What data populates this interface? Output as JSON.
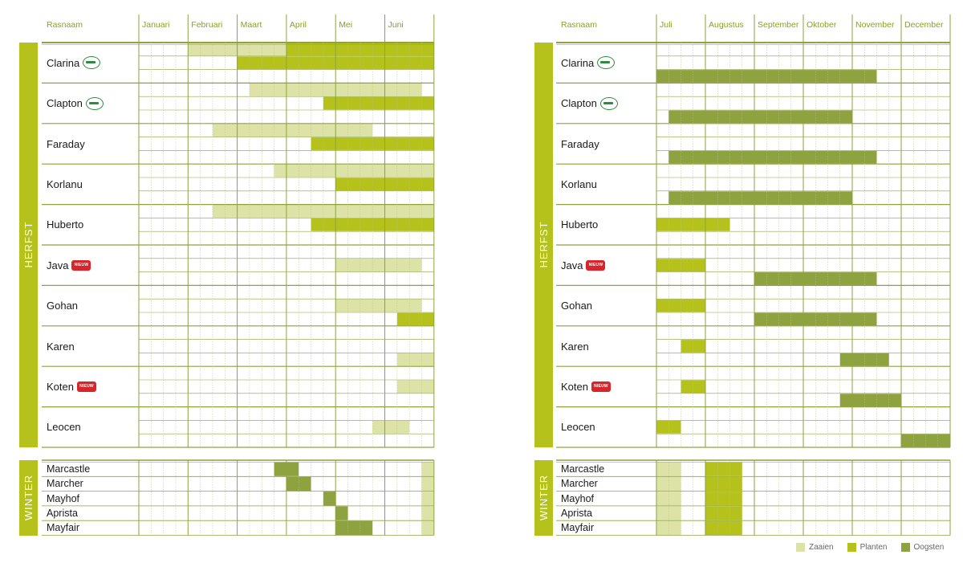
{
  "colors": {
    "zaaien": "#dde3a6",
    "planten": "#b5c21b",
    "oogsten": "#8ea23f",
    "band": "#b5c21b",
    "line": "#8ea23f",
    "accent": "#8aa31a"
  },
  "labels": {
    "rasnaam": "Rasnaam",
    "herfst": "HERFST",
    "winter": "WINTER",
    "new_badge": "NIEUW"
  },
  "legend": [
    {
      "key": "zaaien",
      "label": "Zaaien"
    },
    {
      "key": "planten",
      "label": "Planten"
    },
    {
      "key": "oogsten",
      "label": "Oogsten"
    }
  ],
  "chart_data": [
    {
      "type": "table",
      "months": [
        "Januari",
        "Februari",
        "Maart",
        "April",
        "Mei",
        "Juni"
      ],
      "unit": "quarter-months (0 = start of Januari)",
      "herfst": [
        {
          "name": "Clarina",
          "icon": "badge-icon",
          "r1": [
            [
              "zaaien",
              4,
              12
            ],
            [
              "planten",
              12,
              24
            ]
          ],
          "r2": [
            [
              "planten",
              8,
              24
            ]
          ],
          "r3": []
        },
        {
          "name": "Clapton",
          "icon": "badge-icon",
          "r1": [
            [
              "zaaien",
              9,
              23
            ]
          ],
          "r2": [
            [
              "planten",
              15,
              24
            ]
          ],
          "r3": []
        },
        {
          "name": "Faraday",
          "icon": "",
          "r1": [
            [
              "zaaien",
              6,
              19
            ]
          ],
          "r2": [
            [
              "planten",
              14,
              24
            ]
          ],
          "r3": []
        },
        {
          "name": "Korlanu",
          "icon": "",
          "r1": [
            [
              "zaaien",
              11,
              24
            ]
          ],
          "r2": [
            [
              "planten",
              16,
              24
            ]
          ],
          "r3": []
        },
        {
          "name": "Huberto",
          "icon": "",
          "r1": [
            [
              "zaaien",
              6,
              24
            ]
          ],
          "r2": [
            [
              "planten",
              14,
              24
            ]
          ],
          "r3": []
        },
        {
          "name": "Java",
          "icon": "new-icon",
          "r1": [],
          "r2": [
            [
              "zaaien",
              16,
              23
            ]
          ],
          "r3": []
        },
        {
          "name": "Gohan",
          "icon": "",
          "r1": [],
          "r2": [
            [
              "zaaien",
              16,
              23
            ]
          ],
          "r3": [
            [
              "planten",
              21,
              24
            ]
          ]
        },
        {
          "name": "Karen",
          "icon": "",
          "r1": [],
          "r2": [],
          "r3": [
            [
              "zaaien",
              21,
              24
            ]
          ]
        },
        {
          "name": "Koten",
          "icon": "new-icon",
          "r1": [],
          "r2": [
            [
              "zaaien",
              21,
              24
            ]
          ],
          "r3": []
        },
        {
          "name": "Leocen",
          "icon": "",
          "r1": [],
          "r2": [
            [
              "zaaien",
              19,
              22
            ]
          ],
          "r3": []
        }
      ],
      "winter": [
        {
          "name": "Marcastle",
          "bars": [
            [
              "oogsten",
              11,
              13
            ],
            [
              "zaaien",
              23,
              24
            ]
          ]
        },
        {
          "name": "Marcher",
          "bars": [
            [
              "oogsten",
              12,
              14
            ],
            [
              "zaaien",
              23,
              24
            ]
          ]
        },
        {
          "name": "Mayhof",
          "bars": [
            [
              "oogsten",
              15,
              16
            ],
            [
              "zaaien",
              23,
              24
            ]
          ]
        },
        {
          "name": "Aprista",
          "bars": [
            [
              "oogsten",
              16,
              17
            ],
            [
              "zaaien",
              23,
              24
            ]
          ]
        },
        {
          "name": "Mayfair",
          "bars": [
            [
              "oogsten",
              16,
              19
            ],
            [
              "zaaien",
              23,
              24
            ]
          ]
        }
      ]
    },
    {
      "type": "table",
      "months": [
        "Juli",
        "Augustus",
        "September",
        "Oktober",
        "November",
        "December"
      ],
      "unit": "quarter-months (0 = start of Juli)",
      "herfst": [
        {
          "name": "Clarina",
          "icon": "badge-icon",
          "r1": [],
          "r2": [],
          "r3": [
            [
              "oogsten",
              0,
              18
            ]
          ]
        },
        {
          "name": "Clapton",
          "icon": "badge-icon",
          "r1": [],
          "r2": [],
          "r3": [
            [
              "oogsten",
              1,
              16
            ]
          ]
        },
        {
          "name": "Faraday",
          "icon": "",
          "r1": [],
          "r2": [],
          "r3": [
            [
              "oogsten",
              1,
              18
            ]
          ]
        },
        {
          "name": "Korlanu",
          "icon": "",
          "r1": [],
          "r2": [],
          "r3": [
            [
              "oogsten",
              1,
              16
            ]
          ]
        },
        {
          "name": "Huberto",
          "icon": "",
          "r1": [],
          "r2": [
            [
              "planten",
              0,
              6
            ]
          ],
          "r3": []
        },
        {
          "name": "Java",
          "icon": "new-icon",
          "r1": [],
          "r2": [
            [
              "planten",
              0,
              4
            ]
          ],
          "r3": [
            [
              "oogsten",
              8,
              18
            ]
          ]
        },
        {
          "name": "Gohan",
          "icon": "",
          "r1": [],
          "r2": [
            [
              "planten",
              0,
              4
            ]
          ],
          "r3": [
            [
              "oogsten",
              8,
              18
            ]
          ]
        },
        {
          "name": "Karen",
          "icon": "",
          "r1": [],
          "r2": [
            [
              "planten",
              2,
              4
            ]
          ],
          "r3": [
            [
              "oogsten",
              15,
              19
            ]
          ]
        },
        {
          "name": "Koten",
          "icon": "new-icon",
          "r1": [],
          "r2": [
            [
              "planten",
              2,
              4
            ]
          ],
          "r3": [
            [
              "oogsten",
              15,
              20
            ]
          ]
        },
        {
          "name": "Leocen",
          "icon": "",
          "r1": [],
          "r2": [
            [
              "planten",
              0,
              2
            ]
          ],
          "r3": [
            [
              "oogsten",
              20,
              24
            ]
          ]
        }
      ],
      "winter": [
        {
          "name": "Marcastle",
          "bars": [
            [
              "zaaien",
              0,
              2
            ],
            [
              "planten",
              4,
              7
            ]
          ]
        },
        {
          "name": "Marcher",
          "bars": [
            [
              "zaaien",
              0,
              2
            ],
            [
              "planten",
              4,
              7
            ]
          ]
        },
        {
          "name": "Mayhof",
          "bars": [
            [
              "zaaien",
              0,
              2
            ],
            [
              "planten",
              4,
              7
            ]
          ]
        },
        {
          "name": "Aprista",
          "bars": [
            [
              "zaaien",
              0,
              2
            ],
            [
              "planten",
              4,
              7
            ]
          ]
        },
        {
          "name": "Mayfair",
          "bars": [
            [
              "zaaien",
              0,
              2
            ],
            [
              "planten",
              4,
              7
            ]
          ]
        }
      ]
    }
  ]
}
